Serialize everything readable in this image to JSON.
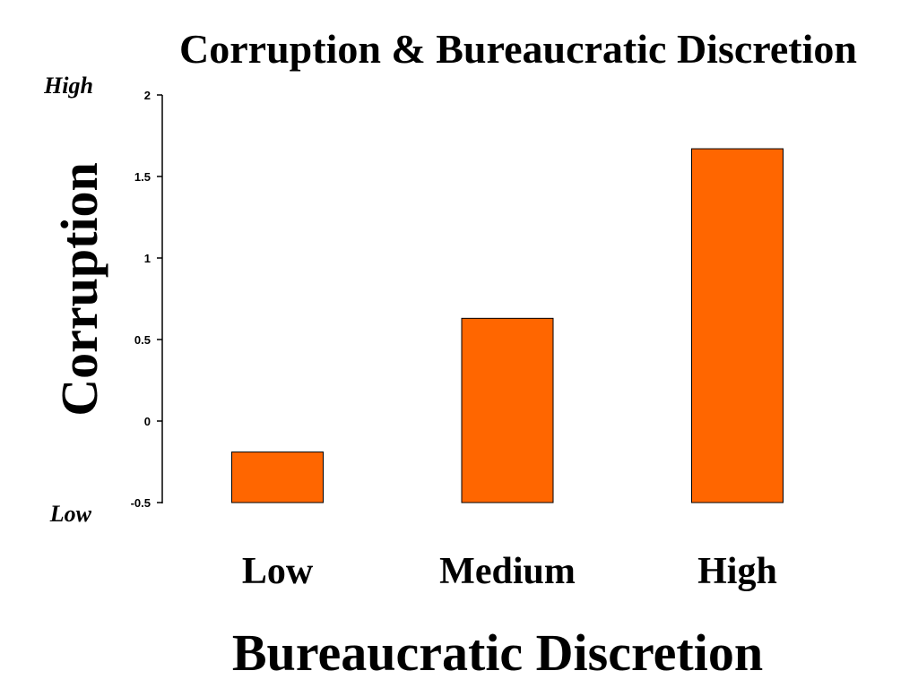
{
  "chart_data": {
    "type": "bar",
    "title": "Corruption & Bureaucratic Discretion",
    "xlabel": "Bureaucratic Discretion",
    "ylabel": "Corruption",
    "categories": [
      "Low",
      "Medium",
      "High"
    ],
    "values": [
      -0.19,
      0.63,
      1.67
    ],
    "ylim": [
      -0.5,
      2
    ],
    "yticks": [
      "2",
      "1.5",
      "1",
      "0.5",
      "0",
      "-0.5"
    ],
    "y_annotations": {
      "top": "High",
      "bottom": "Low"
    },
    "bar_color": "#FF6600",
    "grid": false
  }
}
